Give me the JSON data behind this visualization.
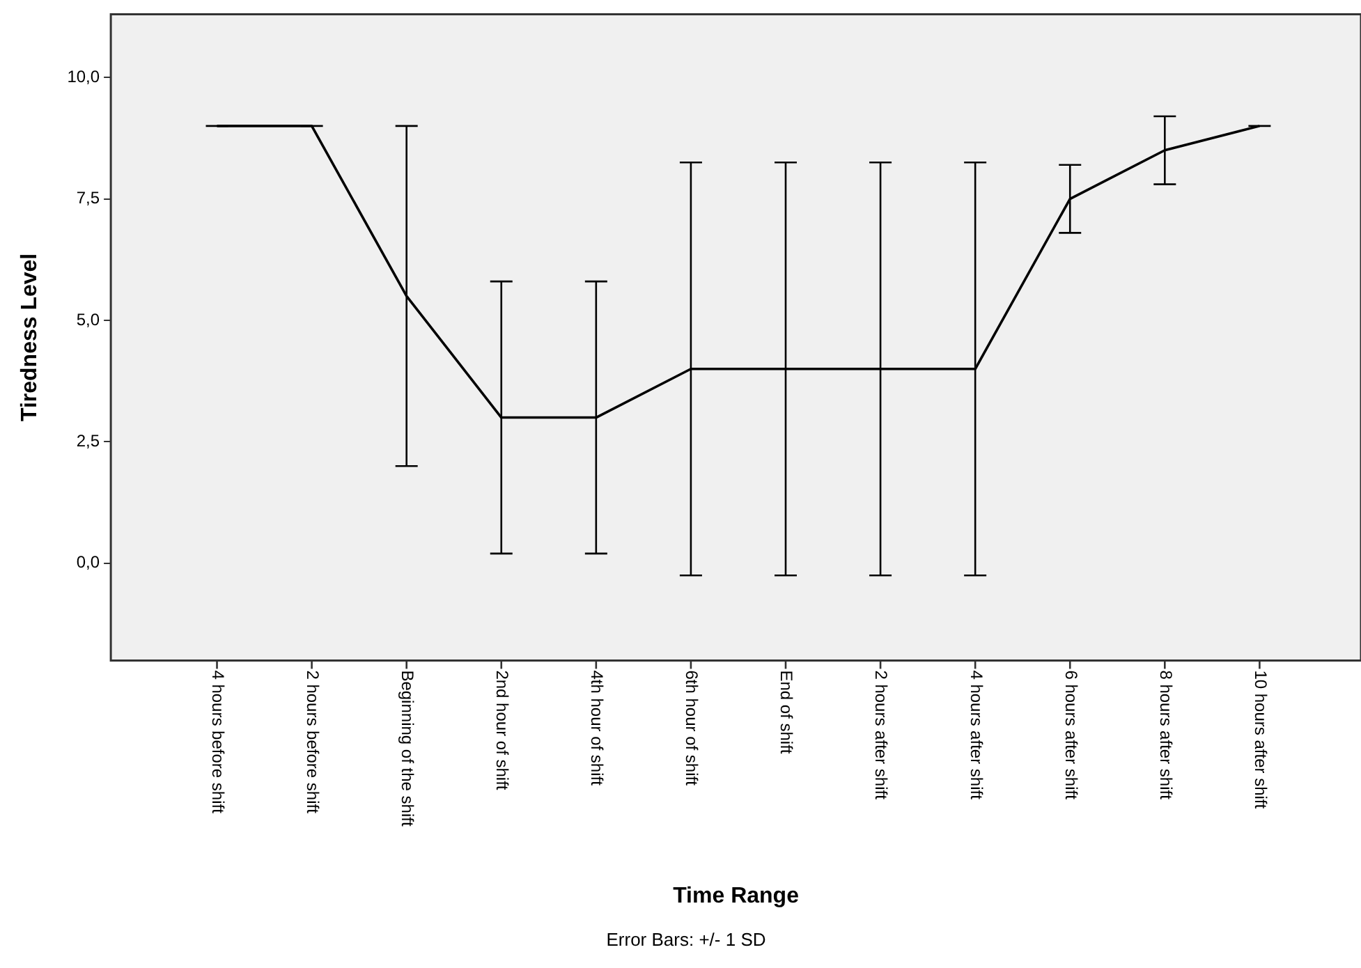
{
  "chart_data": {
    "type": "line",
    "xlabel": "Time Range",
    "ylabel": "Tiredness Level",
    "annotations": [
      "Error Bars: +/- 1 SD"
    ],
    "categories": [
      "4 hours before shift",
      "2 hours before shift",
      "Beginning of the shift",
      "2nd hour of shift",
      "4th hour of shift",
      "6th hour of shift",
      "End of shift",
      "2 hours after shift",
      "4 hours after shift",
      "6 hours after shift",
      "8 hours after shift",
      "10 hours after shift"
    ],
    "series": [
      {
        "color": "#000000",
        "values": [
          9,
          9,
          5.5,
          3,
          3,
          4,
          4,
          4,
          4,
          7.5,
          8.5,
          9
        ],
        "errors": [
          0,
          0,
          3.5,
          2.8,
          2.8,
          4.25,
          4.25,
          4.25,
          4.25,
          0.7,
          0.7,
          0
        ]
      }
    ],
    "ylim": [
      -2,
      11.3
    ],
    "yticks": [
      {
        "value": 0,
        "label": "0,0"
      },
      {
        "value": 2.5,
        "label": "2,5"
      },
      {
        "value": 5,
        "label": "5,0"
      },
      {
        "value": 7.5,
        "label": "7,5"
      },
      {
        "value": 10,
        "label": "10,0"
      }
    ],
    "marker": "none",
    "line_style": "solid"
  }
}
